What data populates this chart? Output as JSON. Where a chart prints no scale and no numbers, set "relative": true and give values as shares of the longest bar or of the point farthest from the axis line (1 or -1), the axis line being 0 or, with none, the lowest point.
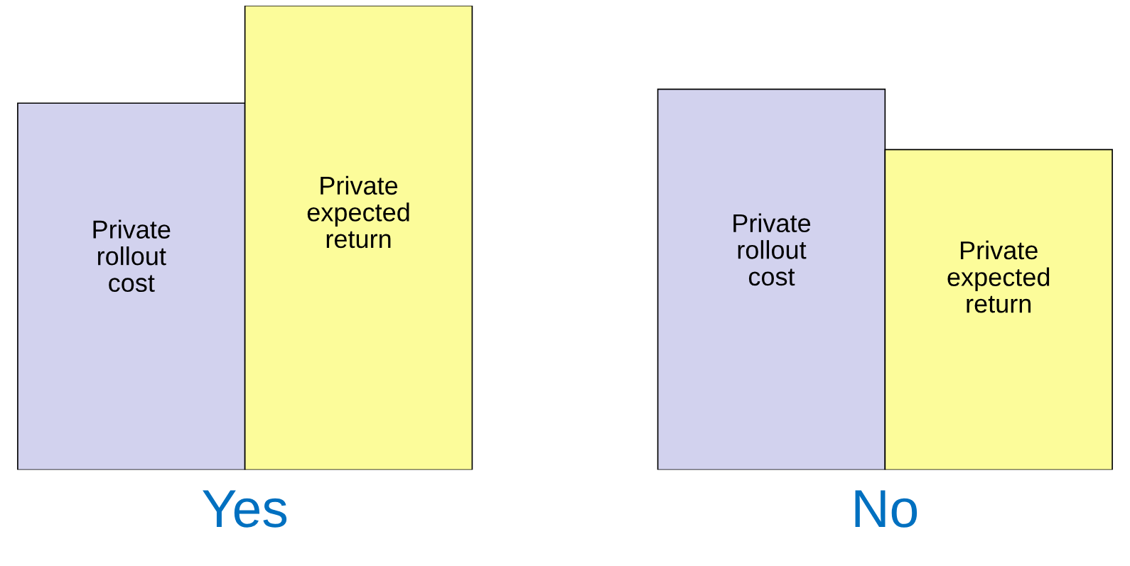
{
  "chart_data": {
    "type": "bar",
    "relative": true,
    "categories": [
      "Yes",
      "No"
    ],
    "series": [
      {
        "name": "Private\nrollout\ncost",
        "color": "#d2d2ee",
        "values": [
          0.79,
          0.82
        ]
      },
      {
        "name": "Private\nexpected\nreturn",
        "color": "#fcfc9a",
        "values": [
          1,
          0.69
        ]
      }
    ]
  }
}
